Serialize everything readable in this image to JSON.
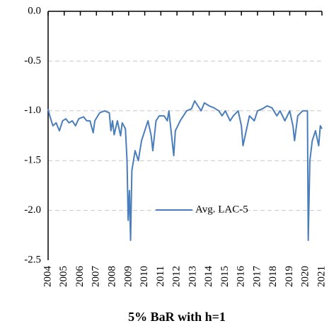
{
  "chart_data": {
    "type": "line",
    "title": "5% BaR with h=1",
    "x": [
      2004.0,
      2004.1,
      2004.2,
      2004.3,
      2004.5,
      2004.7,
      2004.9,
      2005.1,
      2005.3,
      2005.5,
      2005.7,
      2005.9,
      2006.2,
      2006.4,
      2006.6,
      2006.8,
      2006.9,
      2007.2,
      2007.5,
      2007.8,
      2007.9,
      2008.0,
      2008.1,
      2008.3,
      2008.5,
      2008.6,
      2008.8,
      2008.9,
      2008.97,
      2009.05,
      2009.12,
      2009.2,
      2009.3,
      2009.4,
      2009.6,
      2009.8,
      2010.0,
      2010.2,
      2010.4,
      2010.5,
      2010.7,
      2010.9,
      2011.2,
      2011.4,
      2011.5,
      2011.7,
      2011.8,
      2011.9,
      2012.2,
      2012.4,
      2012.6,
      2012.9,
      2013.1,
      2013.3,
      2013.5,
      2013.7,
      2014.0,
      2014.3,
      2014.6,
      2014.8,
      2015.0,
      2015.3,
      2015.5,
      2015.8,
      2016.0,
      2016.1,
      2016.3,
      2016.5,
      2016.8,
      2017.0,
      2017.3,
      2017.6,
      2017.9,
      2018.2,
      2018.4,
      2018.7,
      2019.0,
      2019.2,
      2019.3,
      2019.5,
      2019.8,
      2020.1,
      2020.15,
      2020.25,
      2020.4,
      2020.6,
      2020.8,
      2020.9,
      2021.0
    ],
    "series": [
      {
        "name": "Avg. LAC-5",
        "color": "#4a7ebb",
        "values": [
          -0.98,
          -1.05,
          -1.1,
          -1.15,
          -1.12,
          -1.2,
          -1.1,
          -1.08,
          -1.12,
          -1.1,
          -1.15,
          -1.08,
          -1.06,
          -1.1,
          -1.1,
          -1.22,
          -1.1,
          -1.02,
          -1.0,
          -1.02,
          -1.2,
          -1.1,
          -1.24,
          -1.1,
          -1.25,
          -1.12,
          -1.18,
          -1.5,
          -2.1,
          -1.8,
          -2.3,
          -1.6,
          -1.5,
          -1.4,
          -1.5,
          -1.3,
          -1.2,
          -1.1,
          -1.25,
          -1.4,
          -1.1,
          -1.05,
          -1.05,
          -1.1,
          -1.0,
          -1.3,
          -1.45,
          -1.2,
          -1.1,
          -1.05,
          -1.0,
          -0.98,
          -0.9,
          -0.95,
          -1.0,
          -0.92,
          -0.95,
          -0.97,
          -1.0,
          -1.05,
          -1.0,
          -1.1,
          -1.05,
          -1.0,
          -1.15,
          -1.35,
          -1.2,
          -1.05,
          -1.1,
          -1.0,
          -0.98,
          -0.95,
          -0.97,
          -1.05,
          -1.0,
          -1.1,
          -1.0,
          -1.15,
          -1.3,
          -1.05,
          -1.0,
          -1.0,
          -2.3,
          -1.5,
          -1.3,
          -1.2,
          -1.35,
          -1.15,
          -1.18
        ]
      }
    ],
    "xlim": [
      2004,
      2021
    ],
    "xticks": [
      2004,
      2005,
      2006,
      2007,
      2008,
      2009,
      2010,
      2011,
      2012,
      2013,
      2014,
      2015,
      2016,
      2017,
      2018,
      2019,
      2020,
      2021
    ],
    "ylim": [
      -2.5,
      0
    ],
    "yticks": [
      {
        "value": 0,
        "label": "0.0"
      },
      -0.5,
      {
        "value": -1,
        "label": "-1.0"
      },
      -1.5,
      {
        "value": -2,
        "label": "-2.0"
      },
      -2.5
    ],
    "grid": true
  }
}
